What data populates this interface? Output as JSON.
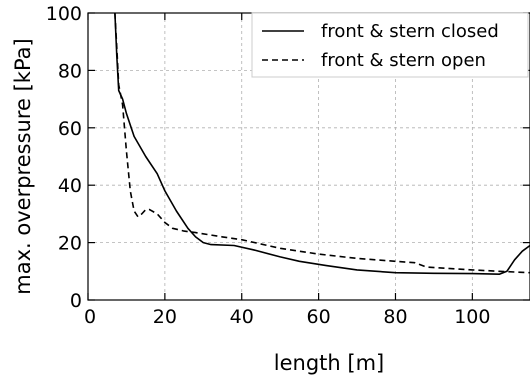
{
  "chart_data": {
    "type": "line",
    "title": "",
    "xlabel": "length [m]",
    "ylabel": "max. overpressure [kPa]",
    "xlim": [
      0,
      115
    ],
    "ylim": [
      0,
      100
    ],
    "x_ticks": [
      0,
      20,
      40,
      60,
      80,
      100
    ],
    "y_ticks": [
      0,
      20,
      40,
      60,
      80,
      100
    ],
    "grid": true,
    "legend_position": "top-right",
    "series": [
      {
        "name": "front & stern closed",
        "style": "solid",
        "color": "#000000",
        "points": [
          [
            7,
            100
          ],
          [
            7.5,
            85
          ],
          [
            8,
            73
          ],
          [
            9,
            70
          ],
          [
            10,
            65
          ],
          [
            12,
            57
          ],
          [
            15,
            50
          ],
          [
            18,
            44
          ],
          [
            20,
            38
          ],
          [
            23,
            31
          ],
          [
            26,
            25
          ],
          [
            28,
            22
          ],
          [
            30,
            20
          ],
          [
            32,
            19.3
          ],
          [
            38,
            19
          ],
          [
            43,
            17.5
          ],
          [
            50,
            15
          ],
          [
            55,
            13.5
          ],
          [
            62,
            12
          ],
          [
            70,
            10.5
          ],
          [
            80,
            9.5
          ],
          [
            90,
            9.3
          ],
          [
            100,
            9.2
          ],
          [
            107,
            9
          ],
          [
            109,
            10
          ],
          [
            111,
            14
          ],
          [
            113,
            17
          ],
          [
            115,
            19
          ]
        ]
      },
      {
        "name": "front & stern open",
        "style": "dashed",
        "color": "#000000",
        "points": [
          [
            7,
            100
          ],
          [
            7.5,
            88
          ],
          [
            8,
            75
          ],
          [
            9,
            68
          ],
          [
            10,
            52
          ],
          [
            11,
            38
          ],
          [
            12,
            31
          ],
          [
            13,
            29
          ],
          [
            14,
            30
          ],
          [
            15,
            31.5
          ],
          [
            16,
            31.5
          ],
          [
            18,
            30
          ],
          [
            20,
            27
          ],
          [
            22,
            25
          ],
          [
            25,
            24
          ],
          [
            28,
            23.5
          ],
          [
            35,
            22
          ],
          [
            40,
            21
          ],
          [
            50,
            18
          ],
          [
            60,
            16
          ],
          [
            70,
            14.5
          ],
          [
            80,
            13.5
          ],
          [
            85,
            13
          ],
          [
            88,
            11.5
          ],
          [
            100,
            10.5
          ],
          [
            107,
            10
          ],
          [
            115,
            9.5
          ]
        ]
      }
    ]
  }
}
